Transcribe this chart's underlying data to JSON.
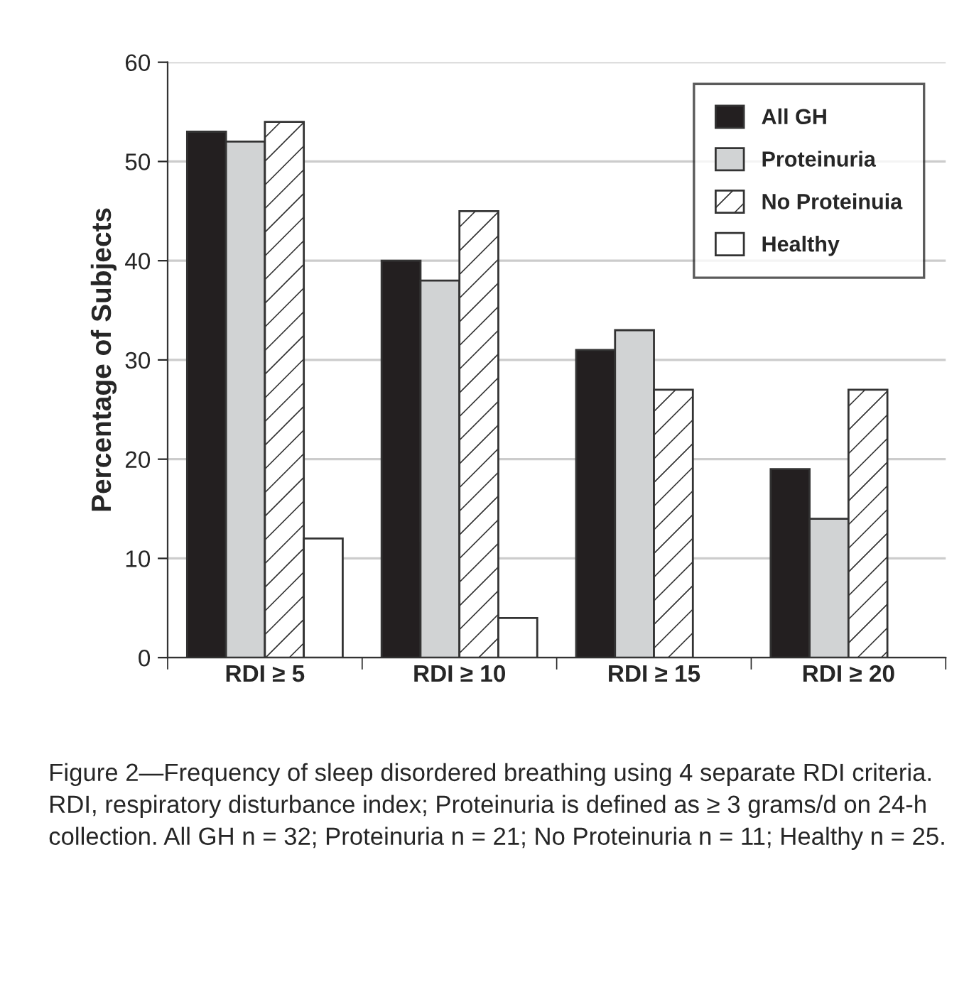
{
  "chart_data": {
    "type": "bar",
    "ylabel": "Percentage of Subjects",
    "categories": [
      "RDI ≥ 5",
      "RDI ≥ 10",
      "RDI ≥ 15",
      "RDI ≥ 20"
    ],
    "series": [
      {
        "name": "All GH",
        "color": "#231f20",
        "values": [
          53,
          40,
          31,
          19
        ]
      },
      {
        "name": "Proteinuria",
        "color": "#d1d3d4",
        "values": [
          52,
          38,
          33,
          14
        ]
      },
      {
        "name": "No Proteinuia",
        "color": "#ffffff",
        "values": [
          54,
          45,
          27,
          27
        ]
      },
      {
        "name": "Healthy",
        "color": "#ffffff",
        "values": [
          12,
          4,
          0,
          0
        ]
      }
    ],
    "ylim": [
      0,
      60
    ],
    "yticks": [
      0,
      10,
      20,
      30,
      40,
      50,
      60
    ],
    "grid": "y",
    "legend": "top right",
    "annotations": [
      "Figure 2—Frequency of sleep disordered breathing using 4 separate RDI criteria. RDI, respiratory disturbance index; Proteinuria is defined as ≥ 3 grams/d on 24-h collection. All GH n = 32; Proteinuria n = 21; No Proteinuria n = 11; Healthy n = 25."
    ]
  }
}
